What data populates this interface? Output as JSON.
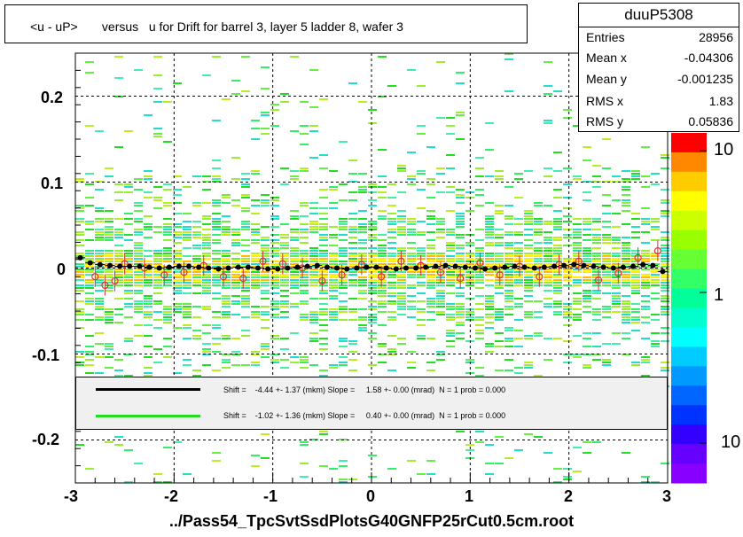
{
  "title": "<u - uP>       versus   u for Drift for barrel 3, layer 5 ladder 8, wafer 3",
  "stats": {
    "name": "duuP5308",
    "rows": [
      {
        "k": "Entries",
        "v": "28956"
      },
      {
        "k": "Mean x",
        "v": "-0.04306"
      },
      {
        "k": "Mean y",
        "v": "-0.001235"
      },
      {
        "k": "RMS x",
        "v": "1.83"
      },
      {
        "k": "RMS y",
        "v": "0.05836"
      }
    ]
  },
  "legend": [
    {
      "color": "#000000",
      "text": "Shift =    -4.44 +- 1.37 (mkm) Slope =     1.58 +- 0.00 (mrad)  N = 1 prob = 0.000"
    },
    {
      "color": "#22dd22",
      "text": "Shift =    -1.02 +- 1.36 (mkm) Slope =     0.40 +- 0.00 (mrad)  N = 1 prob = 0.000"
    }
  ],
  "footer": "../Pass54_TpcSvtSsdPlotsG40GNFP25rCut0.5cm.root",
  "colorbar_labels": [
    "10",
    "1",
    "10"
  ],
  "chart_data": {
    "type": "heatmap",
    "title": "<u - uP>       versus   u for Drift for barrel 3, layer 5 ladder 8, wafer 3",
    "xlim": [
      -3,
      3
    ],
    "ylim": [
      -0.25,
      0.25
    ],
    "x_ticks": [
      "-3",
      "-2",
      "-1",
      "0",
      "1",
      "2",
      "3"
    ],
    "y_ticks": [
      "-0.2",
      "-0.1",
      "0",
      "0.1",
      "0.2"
    ],
    "grid": true,
    "profile_black": {
      "x": [
        -2.95,
        -2.85,
        -2.75,
        -2.65,
        -2.55,
        -2.45,
        -2.35,
        -2.25,
        -2.15,
        -2.05,
        -1.95,
        -1.85,
        -1.75,
        -1.65,
        -1.55,
        -1.45,
        -1.35,
        -1.25,
        -1.15,
        -1.05,
        -0.95,
        -0.85,
        -0.75,
        -0.65,
        -0.55,
        -0.45,
        -0.35,
        -0.25,
        -0.15,
        -0.05,
        0.05,
        0.15,
        0.25,
        0.35,
        0.45,
        0.55,
        0.65,
        0.75,
        0.85,
        0.95,
        1.05,
        1.15,
        1.25,
        1.35,
        1.45,
        1.55,
        1.65,
        1.75,
        1.85,
        1.95,
        2.05,
        2.15,
        2.25,
        2.35,
        2.45,
        2.55,
        2.65,
        2.75,
        2.85,
        2.95
      ],
      "y": [
        0.012,
        0.006,
        0.004,
        0.003,
        0.002,
        0.002,
        0.002,
        0.001,
        0.0,
        0.001,
        0.002,
        0.002,
        0.001,
        0.0,
        -0.001,
        0.0,
        0.001,
        0.001,
        0.0,
        -0.001,
        -0.001,
        0.0,
        0.001,
        0.002,
        0.003,
        0.001,
        0.0,
        -0.001,
        0.0,
        0.001,
        0.001,
        0.0,
        -0.001,
        0.0,
        0.0,
        0.001,
        0.002,
        0.003,
        0.002,
        0.001,
        0.0,
        -0.001,
        0.0,
        0.001,
        0.002,
        0.001,
        0.0,
        0.001,
        0.002,
        0.003,
        0.004,
        0.003,
        0.002,
        0.001,
        0.0,
        0.001,
        0.002,
        0.004,
        0.003,
        -0.004
      ]
    },
    "profile_red": {
      "x": [
        -2.8,
        -2.7,
        -2.6,
        -2.5,
        -2.3,
        -2.1,
        -1.9,
        -1.7,
        -1.5,
        -1.3,
        -1.1,
        -0.9,
        -0.7,
        -0.5,
        -0.3,
        -0.1,
        0.1,
        0.3,
        0.5,
        0.7,
        0.9,
        1.1,
        1.3,
        1.5,
        1.7,
        1.9,
        2.1,
        2.3,
        2.5,
        2.7,
        2.9
      ],
      "y": [
        -0.01,
        -0.02,
        -0.015,
        0.005,
        0.0,
        -0.008,
        -0.005,
        0.003,
        -0.01,
        -0.012,
        0.008,
        0.005,
        0.0,
        -0.015,
        -0.008,
        0.004,
        -0.01,
        0.008,
        0.003,
        -0.005,
        -0.012,
        0.006,
        -0.008,
        0.002,
        -0.01,
        0.004,
        0.008,
        -0.014,
        -0.006,
        0.012,
        0.02
      ]
    }
  }
}
